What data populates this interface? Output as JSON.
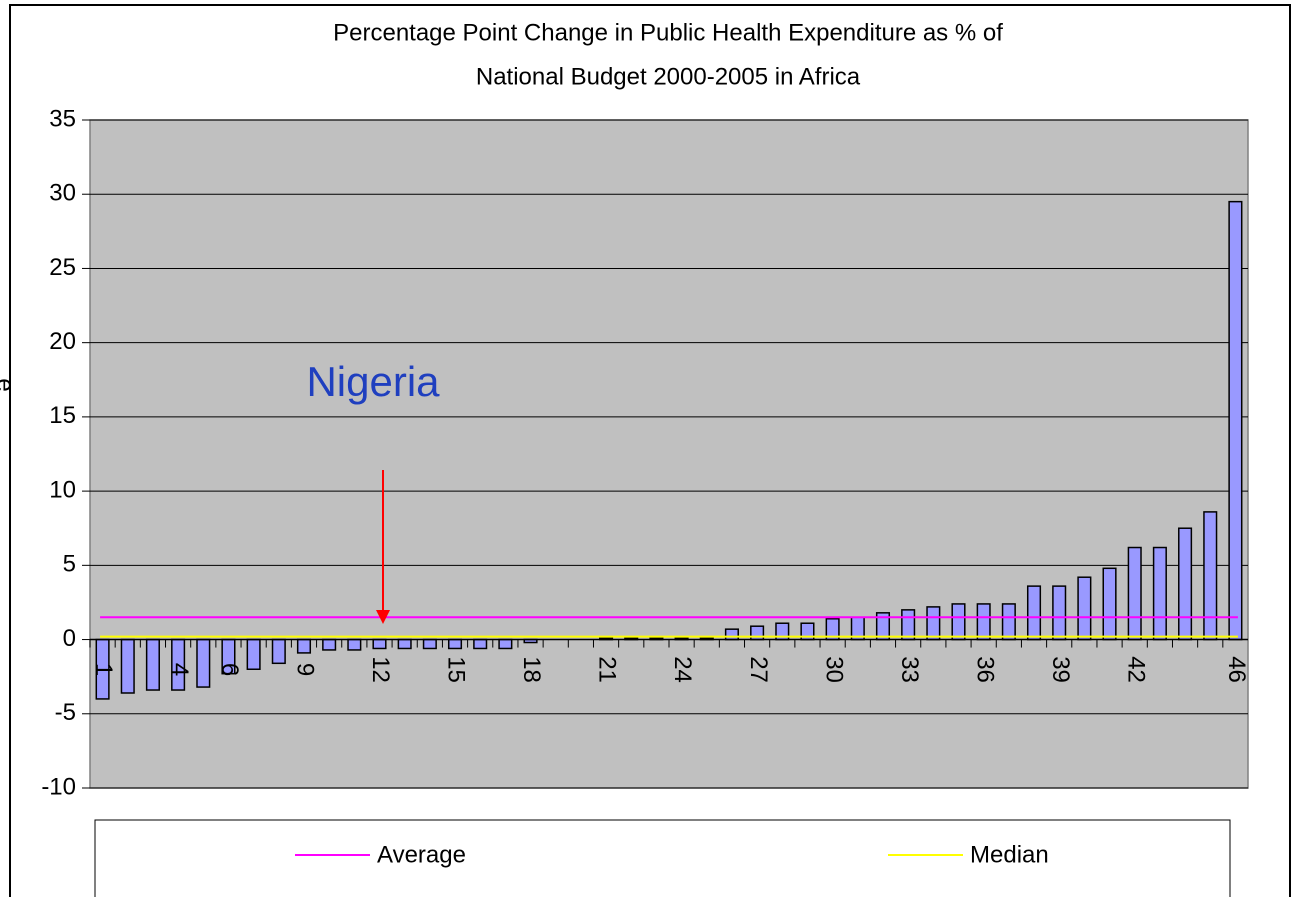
{
  "chart_data": {
    "type": "bar",
    "title": "Percentage Point Change in Public Health Expenditure as % of",
    "subtitle": "National Budget 2000-2005 in Africa",
    "ylabel": "e",
    "annotation": "Nigeria",
    "categories": [
      "1",
      null,
      null,
      "4",
      null,
      "6",
      null,
      null,
      "9",
      null,
      null,
      "12",
      null,
      null,
      "15",
      null,
      null,
      "18",
      null,
      null,
      "21",
      null,
      null,
      "24",
      null,
      null,
      "27",
      null,
      null,
      "30",
      null,
      null,
      "33",
      null,
      null,
      "36",
      null,
      null,
      "39",
      null,
      null,
      "42",
      null,
      null,
      null,
      "46"
    ],
    "values": [
      -4.0,
      -3.6,
      -3.4,
      -3.4,
      -3.2,
      -2.3,
      -2.0,
      -1.6,
      -0.9,
      -0.7,
      -0.7,
      -0.6,
      -0.6,
      -0.6,
      -0.6,
      -0.6,
      -0.6,
      -0.2,
      0,
      0,
      0.1,
      0.1,
      0.1,
      0.1,
      0.1,
      0.7,
      0.9,
      1.1,
      1.1,
      1.4,
      1.5,
      1.8,
      2.0,
      2.2,
      2.4,
      2.4,
      2.4,
      3.6,
      3.6,
      4.2,
      4.8,
      6.2,
      6.2,
      7.5,
      8.6,
      29.5
    ],
    "color": "#9999ff",
    "lines": [
      {
        "name": "Average",
        "color": "#ff00ff",
        "value": 1.5
      },
      {
        "name": "Median",
        "color": "#ffff00",
        "value": 0.2
      }
    ],
    "ylim": [
      -10,
      35
    ],
    "yticks": [
      -10,
      -5,
      0,
      5,
      10,
      15,
      20,
      25,
      30,
      35
    ],
    "grid": true
  }
}
